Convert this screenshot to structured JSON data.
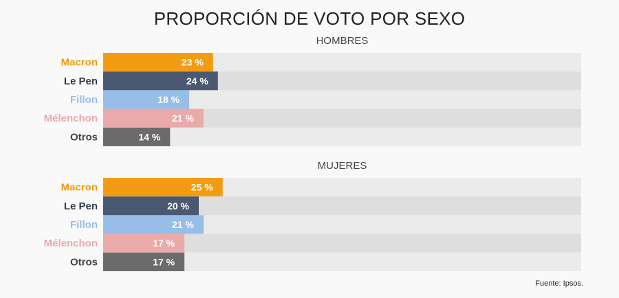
{
  "title": "PROPORCIÓN DE VOTO POR SEXO",
  "source": "Fuente: Ipsos.",
  "colors": {
    "Macron": "#f39c12",
    "Le Pen": "#4a5872",
    "Fillon": "#97bde9",
    "Mélenchon": "#eaaaaa",
    "Otros": "#6b6b6b"
  },
  "label_colors": {
    "Macron": "#f39c12",
    "Le Pen": "#333b48",
    "Fillon": "#97bde9",
    "Mélenchon": "#eaaaaa",
    "Otros": "#444444"
  },
  "chart_data": [
    {
      "type": "bar",
      "orientation": "horizontal",
      "title": "HOMBRES",
      "categories": [
        "Macron",
        "Le Pen",
        "Fillon",
        "Mélenchon",
        "Otros"
      ],
      "values": [
        23,
        24,
        18,
        21,
        14
      ],
      "unit": "%",
      "xlim": [
        0,
        100
      ]
    },
    {
      "type": "bar",
      "orientation": "horizontal",
      "title": "MUJERES",
      "categories": [
        "Macron",
        "Le Pen",
        "Fillon",
        "Mélenchon",
        "Otros"
      ],
      "values": [
        25,
        20,
        21,
        17,
        17
      ],
      "unit": "%",
      "xlim": [
        0,
        100
      ]
    }
  ]
}
